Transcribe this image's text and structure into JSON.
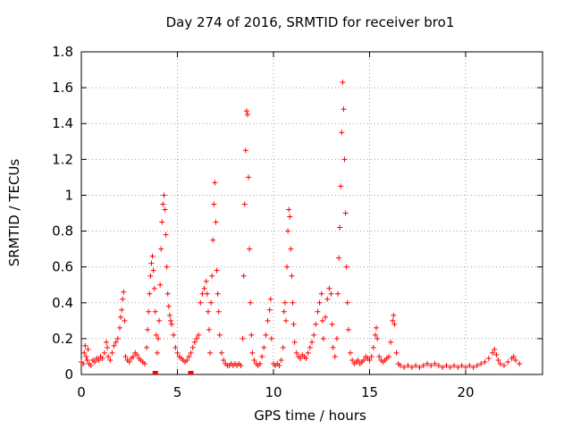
{
  "chart_data": {
    "type": "scatter",
    "title": "Day 274 of 2016, SRMTID for receiver bro1",
    "xlabel": "GPS time / hours",
    "ylabel": "SRMTID / TECUs",
    "xlim": [
      0,
      24
    ],
    "ylim": [
      0,
      1.8
    ],
    "xticks": [
      "0",
      "5",
      "10",
      "15",
      "20"
    ],
    "xtick_values": [
      0,
      5,
      10,
      15,
      20
    ],
    "yticks": [
      "0",
      "0.2",
      "0.4",
      "0.6",
      "0.8",
      "1",
      "1.2",
      "1.4",
      "1.6",
      "1.8"
    ],
    "ytick_values": [
      0,
      0.2,
      0.4,
      0.6,
      0.8,
      1.0,
      1.2,
      1.4,
      1.6,
      1.8
    ],
    "grid": true,
    "legend": "none",
    "marker": "plus",
    "color": "#ff0000",
    "points": [
      [
        0.0,
        0.07
      ],
      [
        0.1,
        0.06
      ],
      [
        0.15,
        0.12
      ],
      [
        0.2,
        0.16
      ],
      [
        0.25,
        0.1
      ],
      [
        0.3,
        0.08
      ],
      [
        0.35,
        0.14
      ],
      [
        0.4,
        0.06
      ],
      [
        0.5,
        0.05
      ],
      [
        0.6,
        0.08
      ],
      [
        0.7,
        0.07
      ],
      [
        0.8,
        0.09
      ],
      [
        0.9,
        0.08
      ],
      [
        1.0,
        0.1
      ],
      [
        1.1,
        0.09
      ],
      [
        1.2,
        0.12
      ],
      [
        1.3,
        0.18
      ],
      [
        1.35,
        0.15
      ],
      [
        1.4,
        0.1
      ],
      [
        1.5,
        0.08
      ],
      [
        1.6,
        0.12
      ],
      [
        1.7,
        0.16
      ],
      [
        1.8,
        0.18
      ],
      [
        1.9,
        0.2
      ],
      [
        2.0,
        0.26
      ],
      [
        2.05,
        0.32
      ],
      [
        2.1,
        0.36
      ],
      [
        2.15,
        0.42
      ],
      [
        2.2,
        0.46
      ],
      [
        2.25,
        0.3
      ],
      [
        2.3,
        0.1
      ],
      [
        2.4,
        0.08
      ],
      [
        2.5,
        0.07
      ],
      [
        2.6,
        0.09
      ],
      [
        2.7,
        0.1
      ],
      [
        2.8,
        0.12
      ],
      [
        2.9,
        0.11
      ],
      [
        3.0,
        0.09
      ],
      [
        3.1,
        0.08
      ],
      [
        3.2,
        0.07
      ],
      [
        3.3,
        0.06
      ],
      [
        3.4,
        0.15
      ],
      [
        3.45,
        0.25
      ],
      [
        3.5,
        0.35
      ],
      [
        3.55,
        0.45
      ],
      [
        3.6,
        0.55
      ],
      [
        3.65,
        0.62
      ],
      [
        3.7,
        0.66
      ],
      [
        3.75,
        0.58
      ],
      [
        3.8,
        0.48
      ],
      [
        3.85,
        0.35
      ],
      [
        3.9,
        0.22
      ],
      [
        3.95,
        0.12
      ],
      [
        4.0,
        0.2
      ],
      [
        4.05,
        0.3
      ],
      [
        4.1,
        0.5
      ],
      [
        4.15,
        0.7
      ],
      [
        4.2,
        0.85
      ],
      [
        4.25,
        0.95
      ],
      [
        4.3,
        1.0
      ],
      [
        4.35,
        0.92
      ],
      [
        4.4,
        0.78
      ],
      [
        4.45,
        0.6
      ],
      [
        4.5,
        0.45
      ],
      [
        4.55,
        0.38
      ],
      [
        4.6,
        0.33
      ],
      [
        4.65,
        0.3
      ],
      [
        4.7,
        0.28
      ],
      [
        4.8,
        0.22
      ],
      [
        4.9,
        0.15
      ],
      [
        5.0,
        0.12
      ],
      [
        5.1,
        0.1
      ],
      [
        5.2,
        0.09
      ],
      [
        5.3,
        0.08
      ],
      [
        5.4,
        0.07
      ],
      [
        5.5,
        0.08
      ],
      [
        5.6,
        0.1
      ],
      [
        5.7,
        0.12
      ],
      [
        5.8,
        0.15
      ],
      [
        5.9,
        0.18
      ],
      [
        6.0,
        0.2
      ],
      [
        6.1,
        0.22
      ],
      [
        6.2,
        0.4
      ],
      [
        6.3,
        0.45
      ],
      [
        6.4,
        0.48
      ],
      [
        6.5,
        0.52
      ],
      [
        6.55,
        0.45
      ],
      [
        6.6,
        0.35
      ],
      [
        6.65,
        0.25
      ],
      [
        6.7,
        0.12
      ],
      [
        6.75,
        0.4
      ],
      [
        6.8,
        0.55
      ],
      [
        6.85,
        0.75
      ],
      [
        6.9,
        0.95
      ],
      [
        6.95,
        1.07
      ],
      [
        7.0,
        0.85
      ],
      [
        7.05,
        0.58
      ],
      [
        7.1,
        0.45
      ],
      [
        7.15,
        0.35
      ],
      [
        7.2,
        0.22
      ],
      [
        7.3,
        0.12
      ],
      [
        7.4,
        0.08
      ],
      [
        7.5,
        0.06
      ],
      [
        7.6,
        0.05
      ],
      [
        7.7,
        0.05
      ],
      [
        7.8,
        0.06
      ],
      [
        7.9,
        0.05
      ],
      [
        8.0,
        0.06
      ],
      [
        8.1,
        0.05
      ],
      [
        8.2,
        0.06
      ],
      [
        8.3,
        0.05
      ],
      [
        8.4,
        0.2
      ],
      [
        8.45,
        0.55
      ],
      [
        8.5,
        0.95
      ],
      [
        8.55,
        1.25
      ],
      [
        8.6,
        1.47
      ],
      [
        8.65,
        1.45
      ],
      [
        8.7,
        1.1
      ],
      [
        8.75,
        0.7
      ],
      [
        8.8,
        0.4
      ],
      [
        8.85,
        0.22
      ],
      [
        8.9,
        0.12
      ],
      [
        9.0,
        0.08
      ],
      [
        9.1,
        0.06
      ],
      [
        9.2,
        0.05
      ],
      [
        9.3,
        0.06
      ],
      [
        9.4,
        0.1
      ],
      [
        9.5,
        0.15
      ],
      [
        9.6,
        0.22
      ],
      [
        9.7,
        0.3
      ],
      [
        9.8,
        0.36
      ],
      [
        9.85,
        0.42
      ],
      [
        9.9,
        0.2
      ],
      [
        10.0,
        0.06
      ],
      [
        10.1,
        0.05
      ],
      [
        10.2,
        0.06
      ],
      [
        10.3,
        0.05
      ],
      [
        10.4,
        0.08
      ],
      [
        10.5,
        0.15
      ],
      [
        10.55,
        0.35
      ],
      [
        10.6,
        0.4
      ],
      [
        10.65,
        0.3
      ],
      [
        10.7,
        0.6
      ],
      [
        10.75,
        0.8
      ],
      [
        10.8,
        0.92
      ],
      [
        10.85,
        0.88
      ],
      [
        10.9,
        0.7
      ],
      [
        10.95,
        0.55
      ],
      [
        11.0,
        0.4
      ],
      [
        11.05,
        0.28
      ],
      [
        11.1,
        0.18
      ],
      [
        11.2,
        0.12
      ],
      [
        11.3,
        0.1
      ],
      [
        11.4,
        0.09
      ],
      [
        11.5,
        0.11
      ],
      [
        11.6,
        0.1
      ],
      [
        11.7,
        0.09
      ],
      [
        11.8,
        0.12
      ],
      [
        11.9,
        0.15
      ],
      [
        12.0,
        0.18
      ],
      [
        12.1,
        0.22
      ],
      [
        12.2,
        0.28
      ],
      [
        12.3,
        0.35
      ],
      [
        12.4,
        0.4
      ],
      [
        12.5,
        0.45
      ],
      [
        12.55,
        0.3
      ],
      [
        12.6,
        0.2
      ],
      [
        12.7,
        0.32
      ],
      [
        12.8,
        0.42
      ],
      [
        12.9,
        0.48
      ],
      [
        13.0,
        0.45
      ],
      [
        13.05,
        0.28
      ],
      [
        13.1,
        0.15
      ],
      [
        13.2,
        0.1
      ],
      [
        13.3,
        0.2
      ],
      [
        13.35,
        0.45
      ],
      [
        13.4,
        0.65
      ],
      [
        13.45,
        0.82
      ],
      [
        13.5,
        1.05
      ],
      [
        13.55,
        1.35
      ],
      [
        13.6,
        1.63
      ],
      [
        13.65,
        1.48
      ],
      [
        13.7,
        1.2
      ],
      [
        13.75,
        0.9
      ],
      [
        13.8,
        0.6
      ],
      [
        13.85,
        0.4
      ],
      [
        13.9,
        0.25
      ],
      [
        14.0,
        0.12
      ],
      [
        14.1,
        0.08
      ],
      [
        14.2,
        0.06
      ],
      [
        14.3,
        0.07
      ],
      [
        14.4,
        0.08
      ],
      [
        14.5,
        0.06
      ],
      [
        14.6,
        0.07
      ],
      [
        14.7,
        0.08
      ],
      [
        14.8,
        0.1
      ],
      [
        14.9,
        0.09
      ],
      [
        15.0,
        0.08
      ],
      [
        15.1,
        0.1
      ],
      [
        15.2,
        0.15
      ],
      [
        15.3,
        0.22
      ],
      [
        15.35,
        0.26
      ],
      [
        15.4,
        0.2
      ],
      [
        15.5,
        0.1
      ],
      [
        15.6,
        0.08
      ],
      [
        15.7,
        0.07
      ],
      [
        15.8,
        0.08
      ],
      [
        15.9,
        0.09
      ],
      [
        16.0,
        0.1
      ],
      [
        16.1,
        0.18
      ],
      [
        16.2,
        0.3
      ],
      [
        16.25,
        0.33
      ],
      [
        16.3,
        0.28
      ],
      [
        16.4,
        0.12
      ],
      [
        16.5,
        0.06
      ],
      [
        16.6,
        0.05
      ],
      [
        16.8,
        0.04
      ],
      [
        17.0,
        0.05
      ],
      [
        17.2,
        0.04
      ],
      [
        17.4,
        0.05
      ],
      [
        17.6,
        0.04
      ],
      [
        17.8,
        0.05
      ],
      [
        18.0,
        0.06
      ],
      [
        18.2,
        0.05
      ],
      [
        18.4,
        0.06
      ],
      [
        18.6,
        0.05
      ],
      [
        18.8,
        0.04
      ],
      [
        19.0,
        0.05
      ],
      [
        19.2,
        0.04
      ],
      [
        19.4,
        0.05
      ],
      [
        19.6,
        0.04
      ],
      [
        19.8,
        0.05
      ],
      [
        20.0,
        0.04
      ],
      [
        20.2,
        0.05
      ],
      [
        20.4,
        0.04
      ],
      [
        20.6,
        0.05
      ],
      [
        20.8,
        0.06
      ],
      [
        21.0,
        0.07
      ],
      [
        21.2,
        0.09
      ],
      [
        21.4,
        0.12
      ],
      [
        21.5,
        0.14
      ],
      [
        21.6,
        0.11
      ],
      [
        21.7,
        0.08
      ],
      [
        21.8,
        0.06
      ],
      [
        22.0,
        0.05
      ],
      [
        22.2,
        0.07
      ],
      [
        22.4,
        0.09
      ],
      [
        22.5,
        0.1
      ],
      [
        22.6,
        0.08
      ],
      [
        22.8,
        0.06
      ]
    ],
    "outliers": [
      [
        3.85,
        0.0
      ],
      [
        5.7,
        0.0
      ]
    ]
  }
}
